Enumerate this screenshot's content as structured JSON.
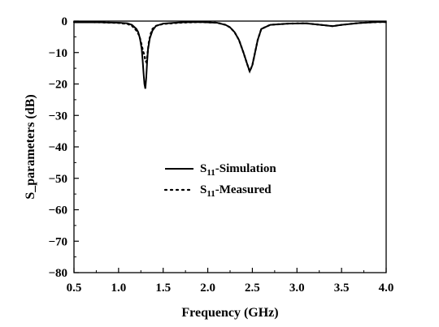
{
  "chart_data": {
    "type": "line",
    "xlabel": "Frequency (GHz)",
    "ylabel": "S_parameters (dB)",
    "xlim": [
      0.5,
      4.0
    ],
    "ylim": [
      -80,
      0
    ],
    "xticks": [
      "0.5",
      "1.0",
      "1.5",
      "2.0",
      "2.5",
      "3.0",
      "3.5",
      "4.0"
    ],
    "yticks": [
      "0",
      "−10",
      "−20",
      "−30",
      "−40",
      "−50",
      "−60",
      "−70",
      "−80"
    ],
    "grid": false,
    "legend_position": "center-left",
    "series": [
      {
        "name": "S11-Simulation",
        "legend_main": "S",
        "legend_sub": "11",
        "legend_rest": "-Simulation",
        "style": "solid",
        "color": "#000000",
        "x": [
          0.5,
          0.8,
          1.0,
          1.1,
          1.15,
          1.2,
          1.22,
          1.24,
          1.26,
          1.27,
          1.28,
          1.29,
          1.3,
          1.31,
          1.32,
          1.33,
          1.35,
          1.38,
          1.42,
          1.5,
          1.7,
          1.9,
          2.1,
          2.2,
          2.25,
          2.3,
          2.35,
          2.4,
          2.44,
          2.47,
          2.5,
          2.53,
          2.56,
          2.6,
          2.7,
          2.9,
          3.1,
          3.3,
          3.4,
          3.5,
          3.7,
          3.9,
          4.0
        ],
        "y": [
          -0.4,
          -0.4,
          -0.5,
          -0.7,
          -1.2,
          -2.5,
          -3.5,
          -5.5,
          -9.0,
          -12.5,
          -16.5,
          -20.0,
          -21.5,
          -18.0,
          -13.0,
          -9.0,
          -5.5,
          -3.0,
          -1.5,
          -0.8,
          -0.4,
          -0.3,
          -0.5,
          -1.2,
          -2.0,
          -3.5,
          -6.0,
          -10.0,
          -13.5,
          -16.0,
          -14.0,
          -10.0,
          -6.0,
          -2.5,
          -1.2,
          -0.8,
          -0.7,
          -1.3,
          -1.6,
          -1.2,
          -0.6,
          -0.3,
          -0.3
        ]
      },
      {
        "name": "S11-Measured",
        "legend_main": "S",
        "legend_sub": "11",
        "legend_rest": "-Measured",
        "style": "dotted",
        "color": "#000000",
        "x": [
          0.5,
          0.8,
          1.0,
          1.1,
          1.15,
          1.2,
          1.23,
          1.25,
          1.27,
          1.29,
          1.3,
          1.31,
          1.32,
          1.33,
          1.34,
          1.36,
          1.38,
          1.42,
          1.5,
          1.7,
          1.9,
          2.1,
          2.2,
          2.25,
          2.3,
          2.35,
          2.4,
          2.44,
          2.47,
          2.5,
          2.53,
          2.56,
          2.6,
          2.7,
          2.9,
          3.1,
          3.3,
          3.4,
          3.5,
          3.7,
          3.9,
          4.0
        ],
        "y": [
          -0.3,
          -0.4,
          -0.6,
          -0.9,
          -1.5,
          -3.0,
          -4.5,
          -6.5,
          -9.0,
          -11.0,
          -12.5,
          -13.0,
          -11.5,
          -9.0,
          -6.5,
          -4.0,
          -2.5,
          -1.5,
          -0.9,
          -0.5,
          -0.3,
          -0.5,
          -1.2,
          -2.0,
          -3.5,
          -6.0,
          -10.0,
          -13.5,
          -16.0,
          -14.0,
          -10.0,
          -6.0,
          -2.5,
          -1.2,
          -0.8,
          -0.7,
          -1.3,
          -1.6,
          -1.2,
          -0.6,
          -0.3,
          -0.3
        ]
      }
    ]
  }
}
